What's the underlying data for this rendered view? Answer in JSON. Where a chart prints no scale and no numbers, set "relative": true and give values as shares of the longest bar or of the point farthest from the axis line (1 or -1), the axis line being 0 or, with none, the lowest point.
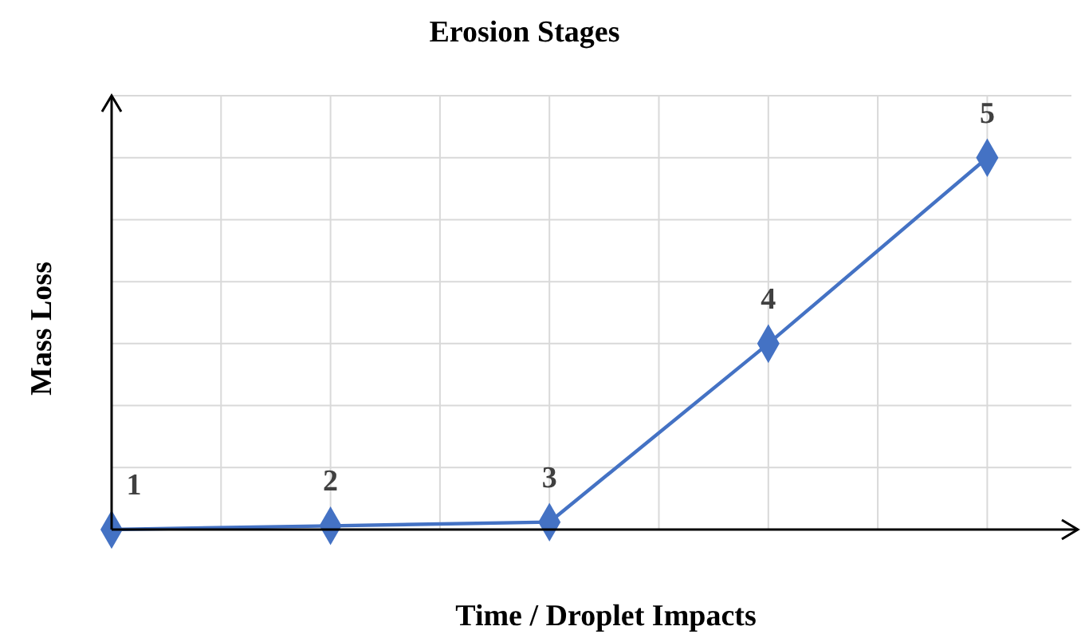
{
  "chart_data": {
    "type": "line",
    "title": "Erosion Stages",
    "xlabel": "Time / Droplet Impacts",
    "ylabel": "Mass Loss",
    "relative": true,
    "categories": [
      null,
      null,
      null,
      null,
      null
    ],
    "series": [
      {
        "color": "#4472c4",
        "values": [
          0,
          0.01,
          0.02,
          0.5,
          1
        ]
      }
    ],
    "annotations": [
      "1",
      "2",
      "3",
      "4",
      "5"
    ],
    "marker": "diamond",
    "grid": true
  }
}
